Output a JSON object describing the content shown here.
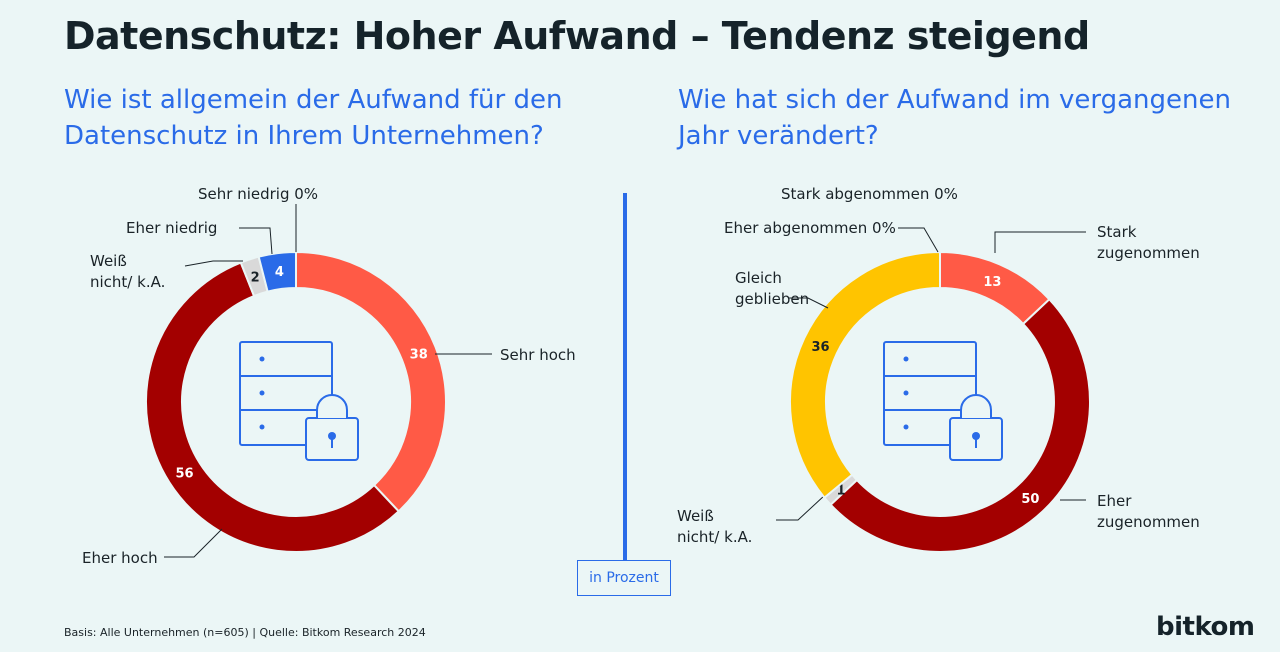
{
  "title": "Datenschutz: Hoher Aufwand – Tendenz steigend",
  "questions": {
    "left": "Wie ist allgemein der Aufwand für den Datenschutz in Ihrem Unternehmen?",
    "right": "Wie hat sich der Aufwand im vergangenen Jahr verändert?"
  },
  "unit_label": "in Prozent",
  "footer": "Basis: Alle Unternehmen (n=605) | Quelle: Bitkom Research 2024",
  "logo": "bitkom",
  "icon": "server-lock-icon",
  "colors": {
    "background": "#ebf6f6",
    "accent": "#2a6be8"
  },
  "chart_data": [
    {
      "type": "pie",
      "variant": "donut",
      "slices": [
        {
          "label": "Sehr hoch",
          "value": 38,
          "color": "#ff5a46"
        },
        {
          "label": "Eher hoch",
          "value": 56,
          "color": "#a30000"
        },
        {
          "label": "Weiß nicht/ k.A.",
          "value": 2,
          "color": "#d9d9d9"
        },
        {
          "label": "Eher niedrig",
          "value": 4,
          "color": "#2a6be8"
        },
        {
          "label": "Sehr niedrig 0%",
          "value": 0,
          "color": "#1f4fb0"
        }
      ]
    },
    {
      "type": "pie",
      "variant": "donut",
      "slices": [
        {
          "label": "Stark zugenommen",
          "value": 13,
          "color": "#ff5a46"
        },
        {
          "label": "Eher zugenommen",
          "value": 50,
          "color": "#a30000"
        },
        {
          "label": "Weiß nicht/ k.A.",
          "value": 1,
          "color": "#d9d9d9"
        },
        {
          "label": "Gleich geblieben",
          "value": 36,
          "color": "#ffc400"
        },
        {
          "label": "Eher abgenommen 0%",
          "value": 0,
          "color": "#2a6be8"
        },
        {
          "label": "Stark abgenommen 0%",
          "value": 0,
          "color": "#1f4fb0"
        }
      ]
    }
  ]
}
